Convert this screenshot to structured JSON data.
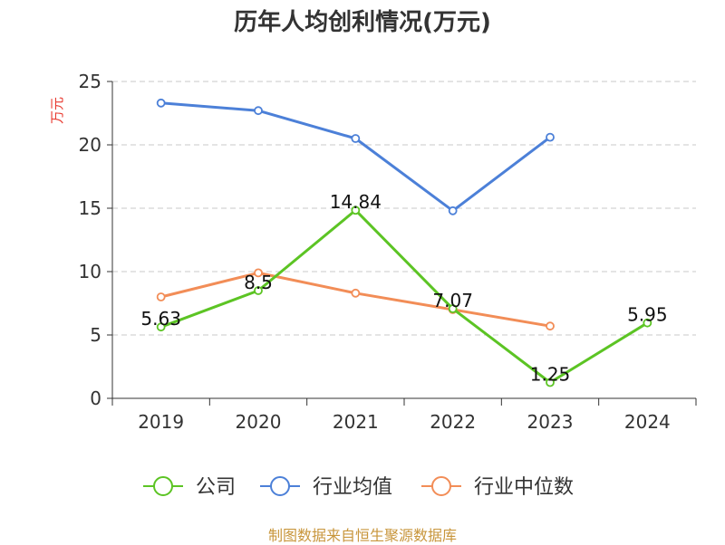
{
  "title": "历年人均创利情况(万元)",
  "source": "制图数据来自恒生聚源数据库",
  "chart_data": {
    "type": "line",
    "title": "历年人均创利情况(万元)",
    "ylabel": "万元",
    "xlabel": "",
    "categories": [
      "2019",
      "2020",
      "2021",
      "2022",
      "2023",
      "2024"
    ],
    "ylim": [
      0,
      25
    ],
    "yticks": [
      0,
      5,
      10,
      15,
      20,
      25
    ],
    "grid": true,
    "legend_position": "bottom",
    "series": [
      {
        "name": "公司",
        "color": "#5cc424",
        "values": [
          5.63,
          8.5,
          14.84,
          7.07,
          1.25,
          5.95
        ],
        "show_labels": true
      },
      {
        "name": "行业均值",
        "color": "#4c80d8",
        "values": [
          23.3,
          22.7,
          20.5,
          14.8,
          20.6,
          null
        ],
        "show_labels": false
      },
      {
        "name": "行业中位数",
        "color": "#f28d57",
        "values": [
          8.0,
          9.9,
          8.3,
          7.0,
          5.7,
          null
        ],
        "show_labels": false
      }
    ]
  }
}
